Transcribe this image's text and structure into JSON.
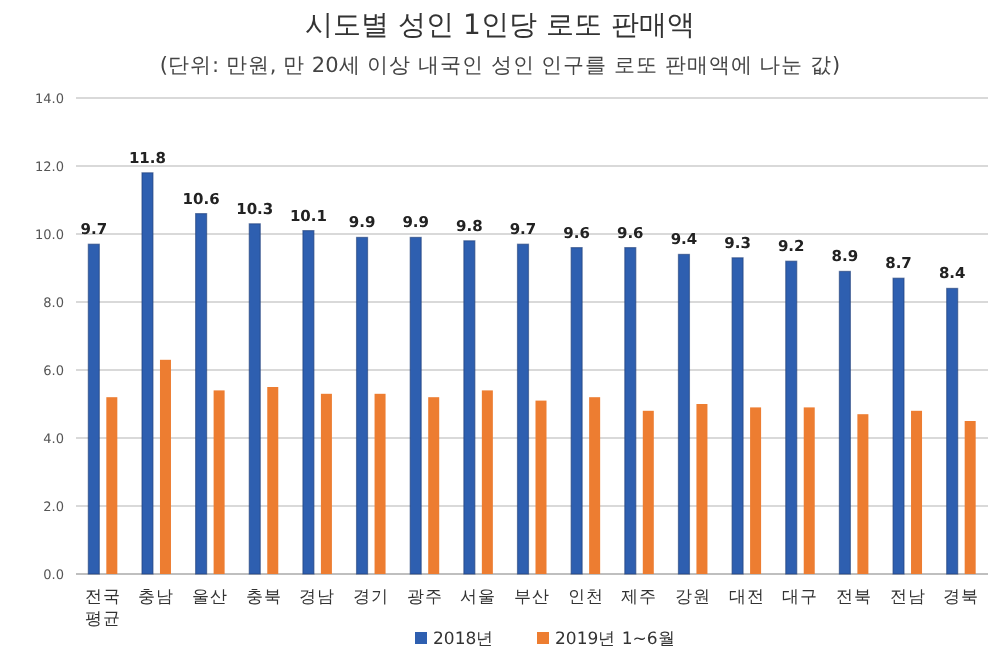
{
  "chart_data": {
    "type": "bar",
    "title": "시도별 성인 1인당 로또 판매액",
    "subtitle": "(단위: 만원, 만 20세 이상 내국인 성인 인구를 로또 판매액에 나눈 값)",
    "categories": [
      "전국 평균",
      "충남",
      "울산",
      "충북",
      "경남",
      "경기",
      "광주",
      "서울",
      "부산",
      "인천",
      "제주",
      "강원",
      "대전",
      "대구",
      "전북",
      "전남",
      "경북"
    ],
    "series": [
      {
        "name": "2018년",
        "color": "#2e5fb0",
        "values": [
          9.7,
          11.8,
          10.6,
          10.3,
          10.1,
          9.9,
          9.9,
          9.8,
          9.7,
          9.6,
          9.6,
          9.4,
          9.3,
          9.2,
          8.9,
          8.7,
          8.4
        ],
        "value_labels": [
          "9.7",
          "11.8",
          "10.6",
          "10.3",
          "10.1",
          "9.9",
          "9.9",
          "9.8",
          "9.7",
          "9.6",
          "9.6",
          "9.4",
          "9.3",
          "9.2",
          "8.9",
          "8.7",
          "8.4"
        ]
      },
      {
        "name": "2019년 1~6월",
        "color": "#ed7d31",
        "values": [
          5.2,
          6.3,
          5.4,
          5.5,
          5.3,
          5.3,
          5.2,
          5.4,
          5.1,
          5.2,
          4.8,
          5.0,
          4.9,
          4.9,
          4.7,
          4.8,
          4.5
        ]
      }
    ],
    "ylim": [
      0,
      14
    ],
    "yticks": [
      {
        "value": 0,
        "label": "0.0"
      },
      {
        "value": 2,
        "label": "2.0"
      },
      {
        "value": 4,
        "label": "4.0"
      },
      {
        "value": 6,
        "label": "6.0"
      },
      {
        "value": 8,
        "label": "8.0"
      },
      {
        "value": 10,
        "label": "10.0"
      },
      {
        "value": 12,
        "label": "12.0"
      },
      {
        "value": 14,
        "label": "14.0"
      }
    ],
    "grid": "y",
    "legend": "bottom"
  }
}
